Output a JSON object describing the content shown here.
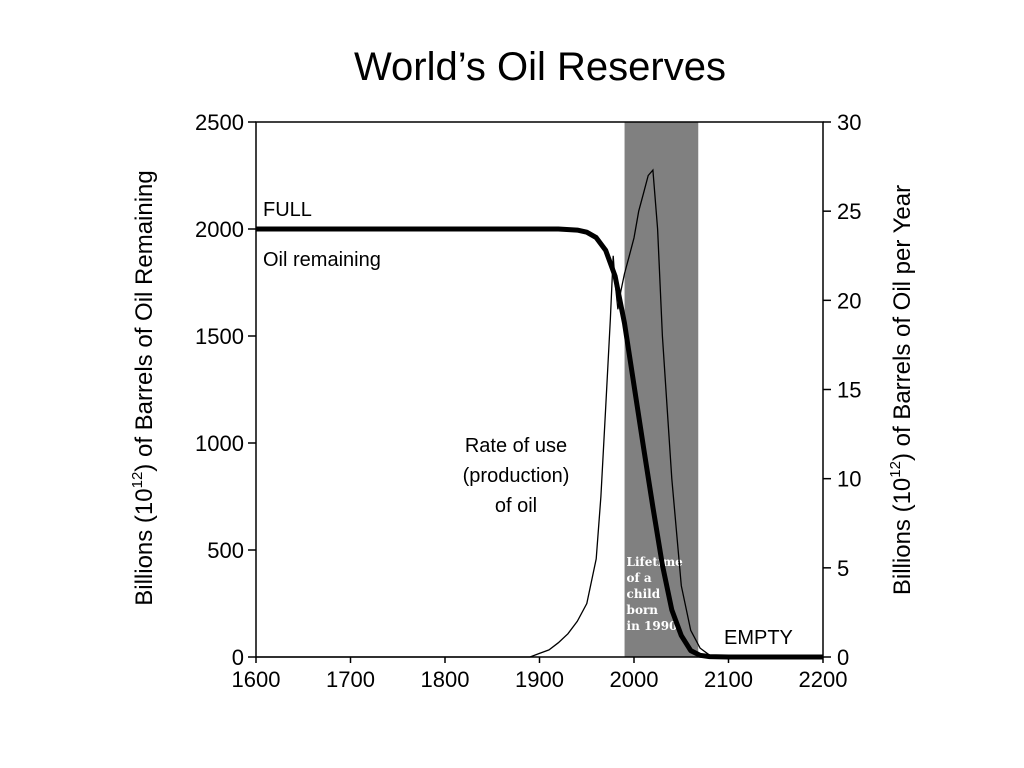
{
  "chart_data": {
    "type": "line",
    "title": "World’s Oil Reserves",
    "ylabel_prefix": "Billions (10",
    "ylabel_exp": "12",
    "ylabel_suffix_left": ") of Barrels of Oil Remaining",
    "ylabel_suffix_right": ") of Barrels of Oil per Year",
    "xlim": [
      1600,
      2200
    ],
    "ylim_left": [
      0,
      2500
    ],
    "ylim_right": [
      0,
      30
    ],
    "x_ticks": [
      "1600",
      "1700",
      "1800",
      "1900",
      "2000",
      "2100",
      "2200"
    ],
    "y_ticks_left": [
      "0",
      "500",
      "1000",
      "1500",
      "2000",
      "2500"
    ],
    "y_ticks_right": [
      "0",
      "5",
      "10",
      "15",
      "20",
      "25",
      "30"
    ],
    "shaded_region": {
      "x_start": 1990,
      "x_end": 2068,
      "color": "#808080",
      "label_lines": [
        "Lifetime",
        "of a",
        "child",
        "born",
        "in 1990"
      ]
    },
    "series": [
      {
        "name": "Oil remaining",
        "axis": "left",
        "x": [
          1600,
          1700,
          1800,
          1900,
          1920,
          1940,
          1950,
          1960,
          1970,
          1980,
          1990,
          2000,
          2010,
          2020,
          2030,
          2040,
          2050,
          2060,
          2070,
          2080,
          2100,
          2200
        ],
        "y": [
          2000,
          2000,
          2000,
          2000,
          2000,
          1995,
          1985,
          1960,
          1900,
          1780,
          1560,
          1270,
          980,
          700,
          430,
          220,
          100,
          30,
          8,
          2,
          0,
          0
        ]
      },
      {
        "name": "Rate of use (production) of oil",
        "axis": "right",
        "x": [
          1600,
          1890,
          1900,
          1910,
          1920,
          1930,
          1940,
          1950,
          1960,
          1965,
          1970,
          1975,
          1978,
          1980,
          1983,
          1986,
          1990,
          1995,
          2000,
          2005,
          2010,
          2015,
          2020,
          2025,
          2030,
          2040,
          2050,
          2060,
          2070,
          2080,
          2100,
          2200
        ],
        "y": [
          0,
          0,
          0.2,
          0.4,
          0.8,
          1.3,
          2.0,
          3.0,
          5.5,
          9.0,
          14.0,
          19.0,
          22.5,
          21.0,
          19.5,
          20.5,
          21.5,
          22.5,
          23.5,
          25.0,
          26.0,
          27.0,
          27.3,
          24.0,
          18.0,
          10.0,
          4.0,
          1.5,
          0.5,
          0.1,
          0,
          0
        ]
      }
    ],
    "annotations": {
      "full": "FULL",
      "oil_remaining": "Oil remaining",
      "rate_lines": [
        "Rate of use",
        "(production)",
        "of oil"
      ],
      "empty": "EMPTY"
    }
  }
}
